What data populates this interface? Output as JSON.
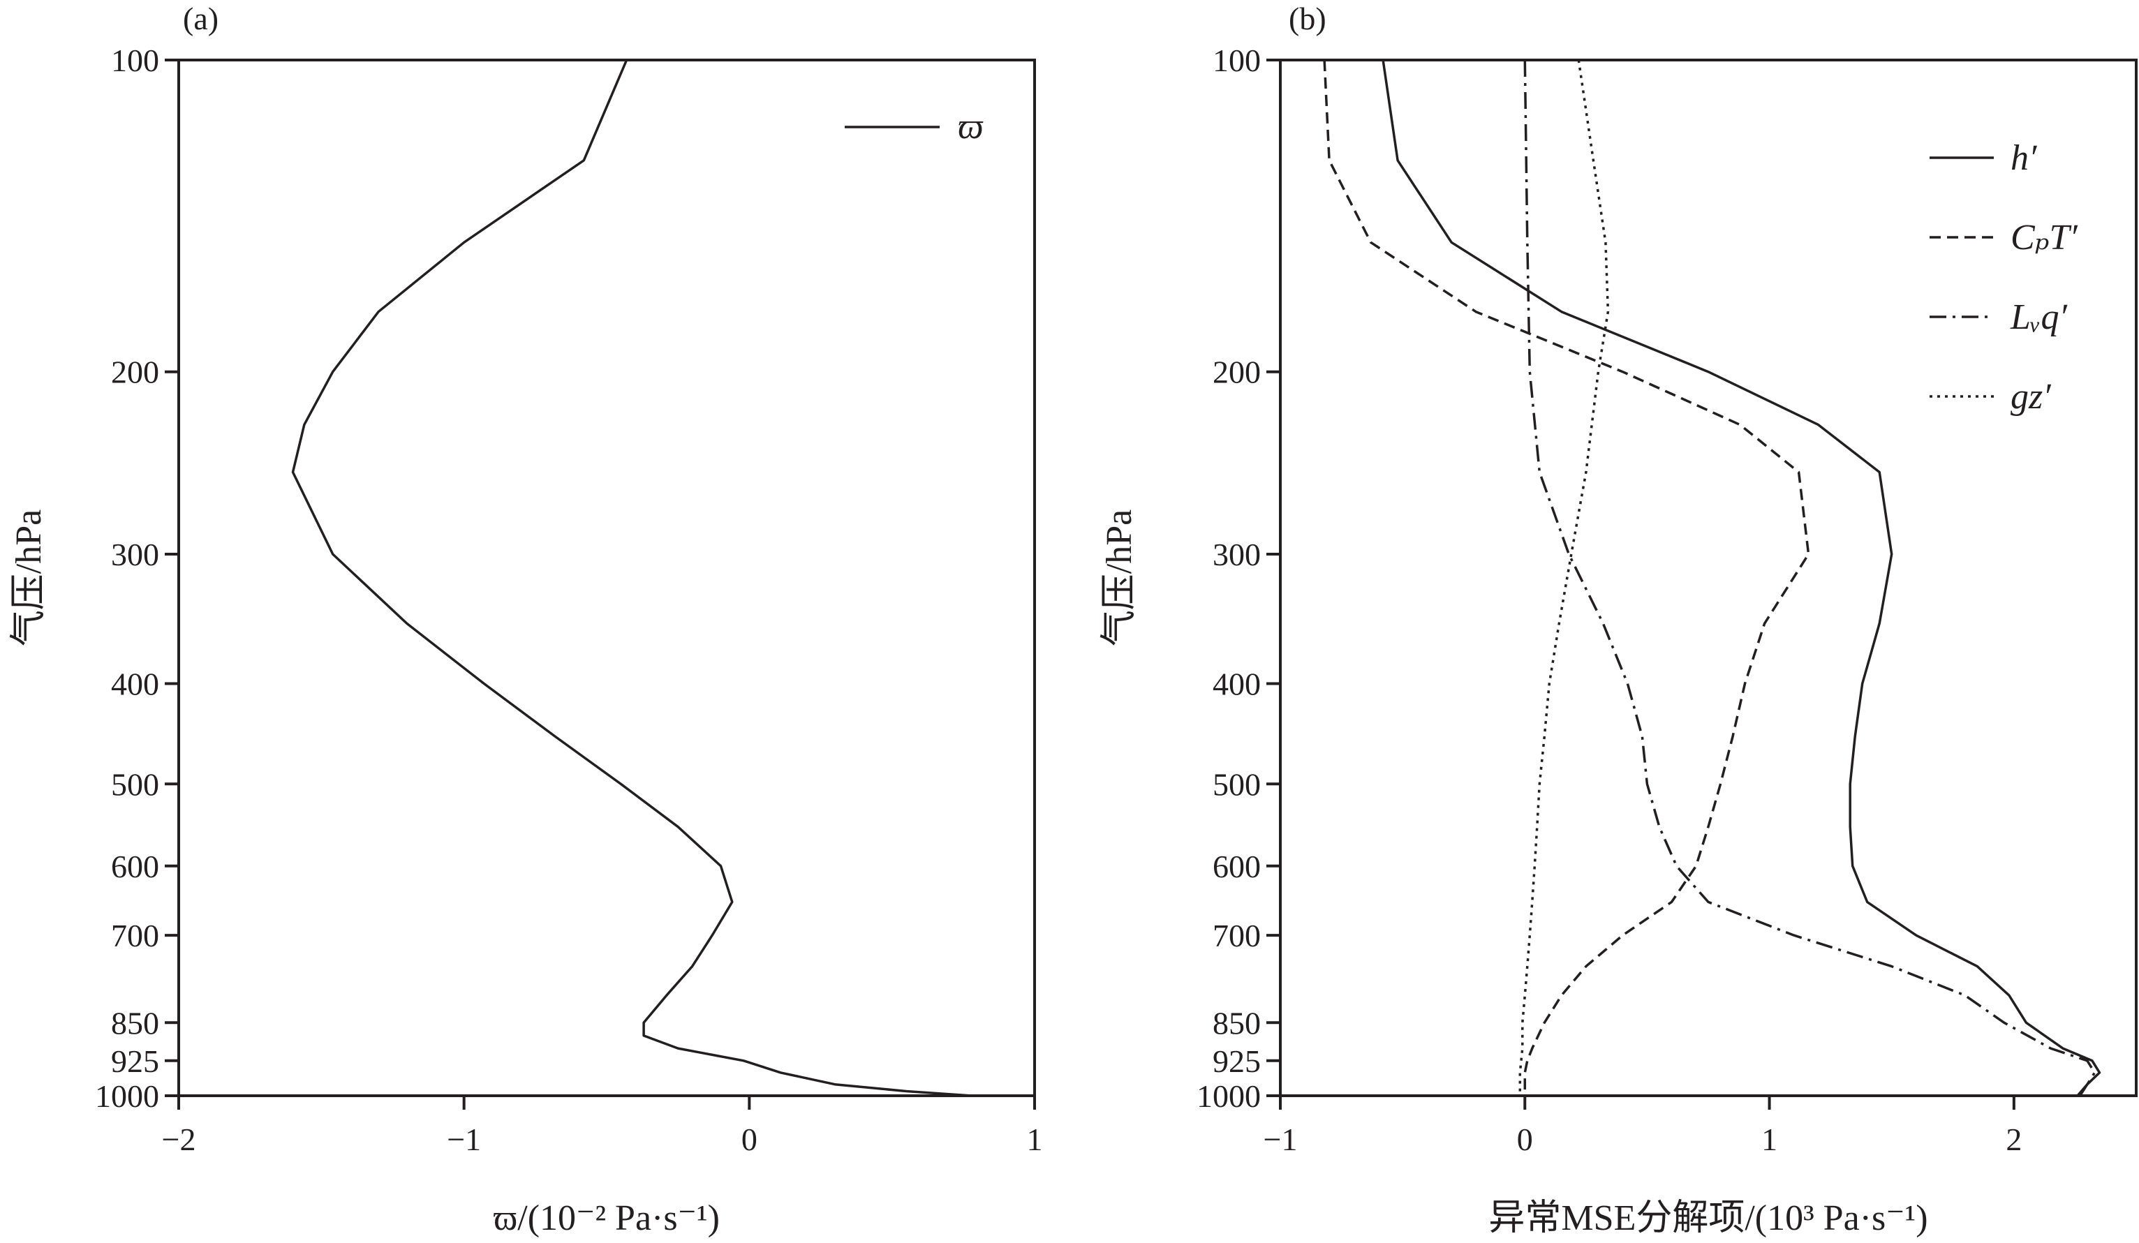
{
  "chart_data": [
    {
      "type": "line",
      "panel_label": "(a)",
      "xlabel": "ϖ/(10⁻² Pa·s⁻¹)",
      "ylabel": "气压/hPa",
      "xlim": [
        -2,
        1
      ],
      "ylim": [
        1000,
        100
      ],
      "y_scale": "log",
      "x_ticks": [
        "−2",
        "−1",
        "0",
        "1"
      ],
      "x_tick_values": [
        -2,
        -1,
        0,
        1
      ],
      "y_ticks": [
        "100",
        "200",
        "300",
        "400",
        "500",
        "600",
        "700",
        "850",
        "925",
        "1000"
      ],
      "y_tick_values": [
        100,
        200,
        300,
        400,
        500,
        600,
        700,
        850,
        925,
        1000
      ],
      "grid": false,
      "legend": "top-right",
      "series": [
        {
          "name": "ϖ",
          "style": "solid",
          "points": [
            [
              -0.43,
              100
            ],
            [
              -0.58,
              125
            ],
            [
              -1.0,
              150
            ],
            [
              -1.3,
              175
            ],
            [
              -1.46,
              200
            ],
            [
              -1.56,
              225
            ],
            [
              -1.6,
              250
            ],
            [
              -1.46,
              300
            ],
            [
              -1.2,
              350
            ],
            [
              -0.93,
              400
            ],
            [
              -0.68,
              450
            ],
            [
              -0.45,
              500
            ],
            [
              -0.25,
              550
            ],
            [
              -0.1,
              600
            ],
            [
              -0.06,
              650
            ],
            [
              -0.13,
              700
            ],
            [
              -0.2,
              750
            ],
            [
              -0.29,
              800
            ],
            [
              -0.37,
              850
            ],
            [
              -0.37,
              875
            ],
            [
              -0.25,
              900
            ],
            [
              -0.02,
              925
            ],
            [
              0.11,
              950
            ],
            [
              0.3,
              975
            ],
            [
              0.55,
              990
            ],
            [
              0.78,
              1000
            ]
          ]
        }
      ]
    },
    {
      "type": "line",
      "panel_label": "(b)",
      "xlabel": "异常MSE分解项/(10³ Pa·s⁻¹)",
      "ylabel": "气压/hPa",
      "xlim": [
        -1,
        2.5
      ],
      "ylim": [
        1000,
        100
      ],
      "y_scale": "log",
      "x_ticks": [
        "−1",
        "0",
        "1",
        "2"
      ],
      "x_tick_values": [
        -1,
        0,
        1,
        2
      ],
      "y_ticks": [
        "100",
        "200",
        "300",
        "400",
        "500",
        "600",
        "700",
        "850",
        "925",
        "1000"
      ],
      "y_tick_values": [
        100,
        200,
        300,
        400,
        500,
        600,
        700,
        850,
        925,
        1000
      ],
      "grid": false,
      "legend": "top-right",
      "series": [
        {
          "name": "h′",
          "style": "solid",
          "points": [
            [
              -0.58,
              100
            ],
            [
              -0.52,
              125
            ],
            [
              -0.3,
              150
            ],
            [
              0.15,
              175
            ],
            [
              0.75,
              200
            ],
            [
              1.2,
              225
            ],
            [
              1.45,
              250
            ],
            [
              1.5,
              300
            ],
            [
              1.45,
              350
            ],
            [
              1.38,
              400
            ],
            [
              1.35,
              450
            ],
            [
              1.33,
              500
            ],
            [
              1.33,
              550
            ],
            [
              1.34,
              600
            ],
            [
              1.4,
              650
            ],
            [
              1.6,
              700
            ],
            [
              1.85,
              750
            ],
            [
              1.98,
              800
            ],
            [
              2.05,
              850
            ],
            [
              2.2,
              900
            ],
            [
              2.32,
              925
            ],
            [
              2.35,
              950
            ],
            [
              2.3,
              975
            ],
            [
              2.26,
              1000
            ]
          ]
        },
        {
          "name": "CₚT′",
          "style": "dashed",
          "points": [
            [
              -0.82,
              100
            ],
            [
              -0.8,
              125
            ],
            [
              -0.63,
              150
            ],
            [
              -0.2,
              175
            ],
            [
              0.4,
              200
            ],
            [
              0.88,
              225
            ],
            [
              1.12,
              250
            ],
            [
              1.16,
              300
            ],
            [
              0.98,
              350
            ],
            [
              0.9,
              400
            ],
            [
              0.85,
              450
            ],
            [
              0.8,
              500
            ],
            [
              0.75,
              550
            ],
            [
              0.7,
              600
            ],
            [
              0.6,
              650
            ],
            [
              0.4,
              700
            ],
            [
              0.25,
              750
            ],
            [
              0.15,
              800
            ],
            [
              0.08,
              850
            ],
            [
              0.03,
              900
            ],
            [
              0.01,
              925
            ],
            [
              0.0,
              950
            ],
            [
              0.0,
              975
            ],
            [
              0.0,
              1000
            ]
          ]
        },
        {
          "name": "Lᵥq′",
          "style": "dash-dot",
          "points": [
            [
              0.0,
              100
            ],
            [
              0.01,
              150
            ],
            [
              0.02,
              200
            ],
            [
              0.06,
              250
            ],
            [
              0.18,
              300
            ],
            [
              0.32,
              350
            ],
            [
              0.42,
              400
            ],
            [
              0.48,
              450
            ],
            [
              0.5,
              500
            ],
            [
              0.55,
              550
            ],
            [
              0.62,
              600
            ],
            [
              0.75,
              650
            ],
            [
              1.1,
              700
            ],
            [
              1.5,
              750
            ],
            [
              1.8,
              800
            ],
            [
              1.96,
              850
            ],
            [
              2.15,
              900
            ],
            [
              2.3,
              925
            ],
            [
              2.33,
              950
            ],
            [
              2.3,
              975
            ],
            [
              2.27,
              1000
            ]
          ]
        },
        {
          "name": "gz′",
          "style": "dotted",
          "points": [
            [
              0.22,
              100
            ],
            [
              0.28,
              125
            ],
            [
              0.33,
              150
            ],
            [
              0.34,
              175
            ],
            [
              0.3,
              200
            ],
            [
              0.25,
              250
            ],
            [
              0.19,
              300
            ],
            [
              0.14,
              350
            ],
            [
              0.1,
              400
            ],
            [
              0.08,
              450
            ],
            [
              0.06,
              500
            ],
            [
              0.05,
              550
            ],
            [
              0.04,
              600
            ],
            [
              0.03,
              650
            ],
            [
              0.02,
              700
            ],
            [
              0.01,
              750
            ],
            [
              0.0,
              800
            ],
            [
              -0.01,
              850
            ],
            [
              -0.01,
              900
            ],
            [
              -0.02,
              950
            ],
            [
              -0.02,
              1000
            ]
          ]
        }
      ]
    }
  ]
}
